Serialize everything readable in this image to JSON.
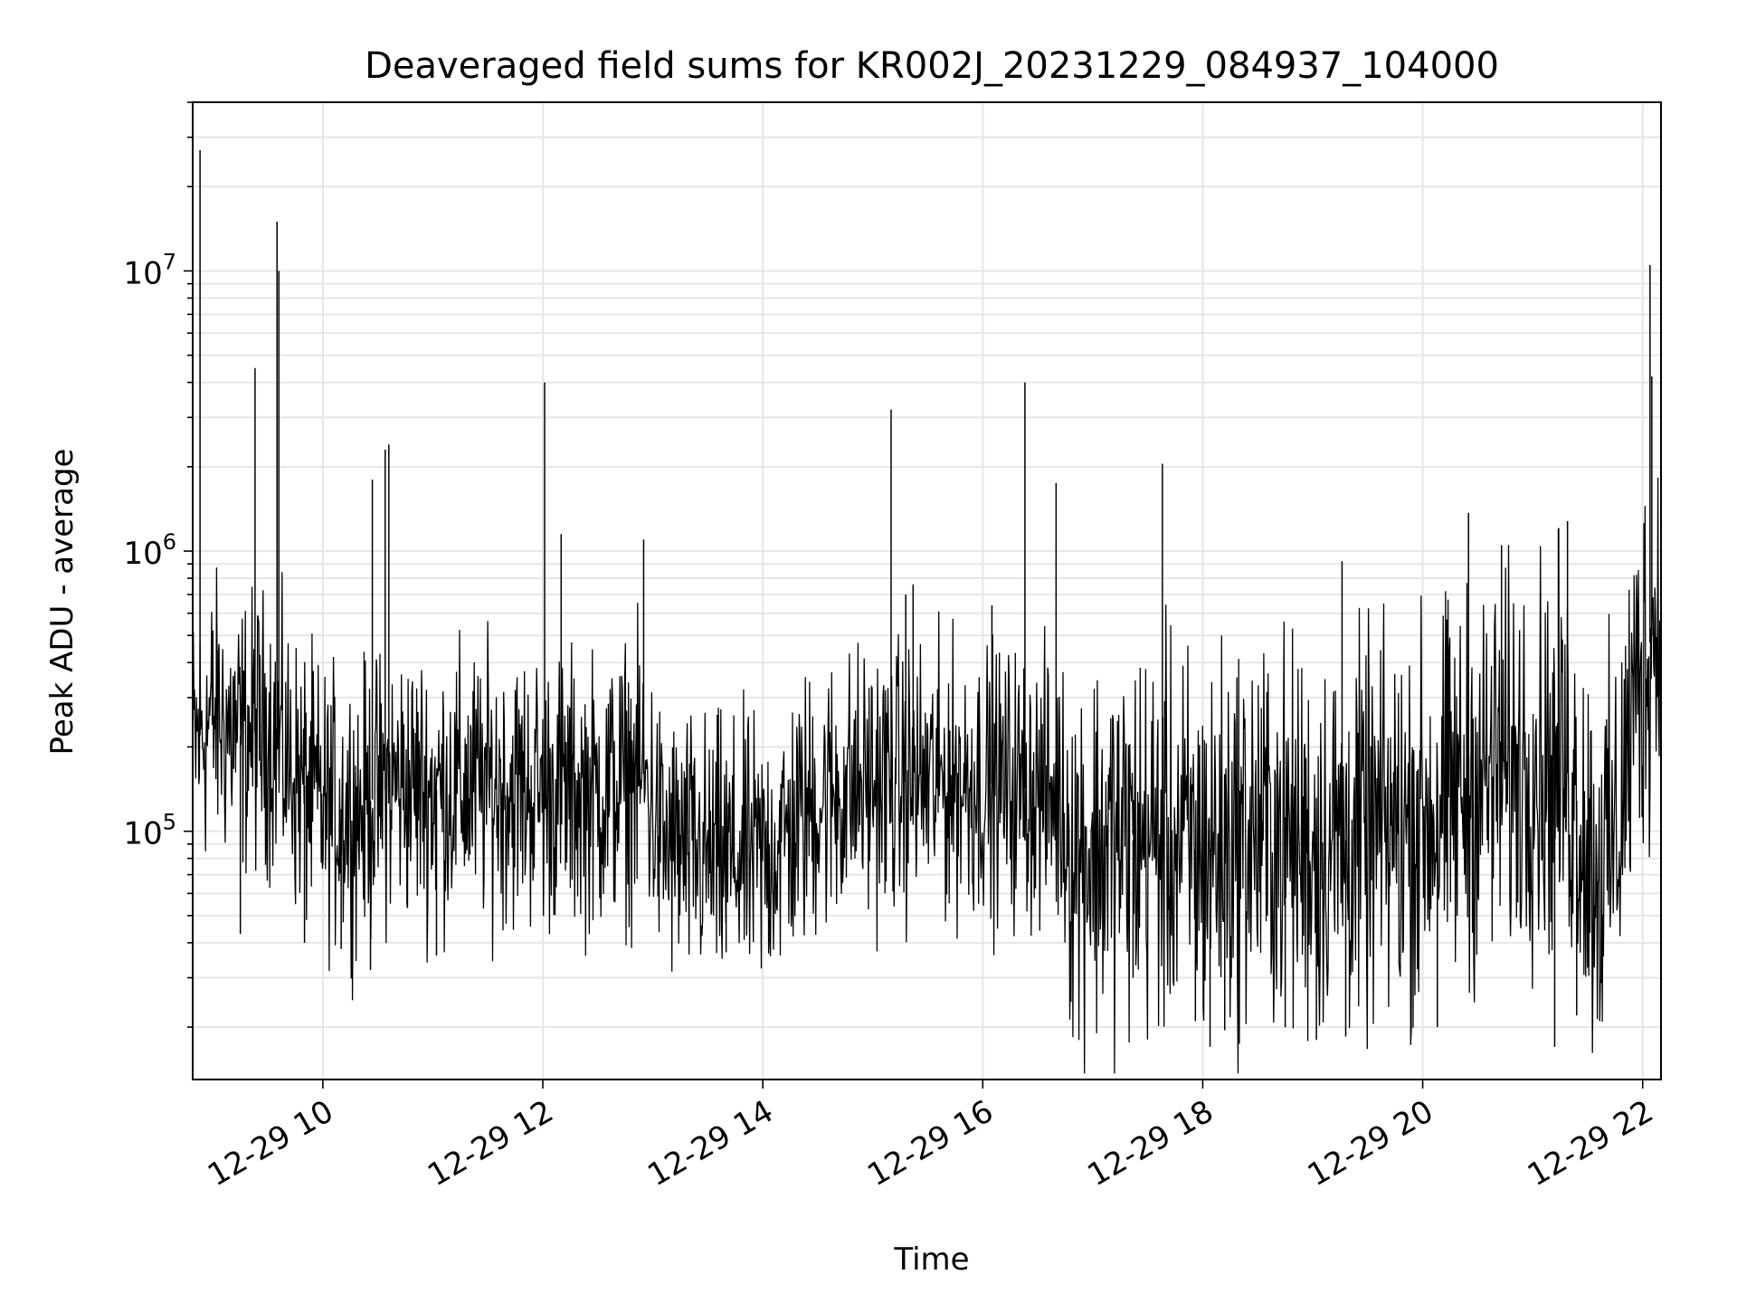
{
  "chart_data": {
    "type": "line",
    "title": "Deaveraged field sums for KR002J_20231229_084937_104000",
    "xlabel": "Time",
    "ylabel": "Peak ADU - average",
    "x_range": [
      "2023-12-29 08:49",
      "2023-12-29 22:10"
    ],
    "yscale": "log",
    "ylim": [
      13000,
      40000000
    ],
    "grid": true,
    "grid_minor": true,
    "line_color": "#000000",
    "x_ticks": [
      {
        "value": "2023-12-29 10:00",
        "label": "12-29 10"
      },
      {
        "value": "2023-12-29 12:00",
        "label": "12-29 12"
      },
      {
        "value": "2023-12-29 14:00",
        "label": "12-29 14"
      },
      {
        "value": "2023-12-29 16:00",
        "label": "12-29 16"
      },
      {
        "value": "2023-12-29 18:00",
        "label": "12-29 18"
      },
      {
        "value": "2023-12-29 20:00",
        "label": "12-29 20"
      },
      {
        "value": "2023-12-29 22:00",
        "label": "12-29 22"
      }
    ],
    "y_ticks": [
      {
        "value": 100000,
        "base": "10",
        "exp": "5"
      },
      {
        "value": 1000000,
        "base": "10",
        "exp": "6"
      },
      {
        "value": 10000000,
        "base": "10",
        "exp": "7"
      }
    ],
    "series": [
      {
        "x": [
          "2023-12-29 08:49",
          "2023-12-29 09:00",
          "2023-12-29 09:15",
          "2023-12-29 09:30",
          "2023-12-29 09:45",
          "2023-12-29 10:00",
          "2023-12-29 10:20",
          "2023-12-29 10:40",
          "2023-12-29 11:00",
          "2023-12-29 11:30",
          "2023-12-29 12:00",
          "2023-12-29 12:30",
          "2023-12-29 12:55",
          "2023-12-29 13:05",
          "2023-12-29 13:30",
          "2023-12-29 14:00",
          "2023-12-29 14:15",
          "2023-12-29 14:30",
          "2023-12-29 15:00",
          "2023-12-29 15:30",
          "2023-12-29 16:00",
          "2023-12-29 16:30",
          "2023-12-29 16:42",
          "2023-12-29 16:50",
          "2023-12-29 17:30",
          "2023-12-29 18:00",
          "2023-12-29 18:30",
          "2023-12-29 19:00",
          "2023-12-29 19:30",
          "2023-12-29 20:00",
          "2023-12-29 20:30",
          "2023-12-29 21:00",
          "2023-12-29 21:20",
          "2023-12-29 21:35",
          "2023-12-29 21:45",
          "2023-12-29 21:55",
          "2023-12-29 22:05",
          "2023-12-29 22:10"
        ],
        "y": [
          200000,
          260000,
          220000,
          230000,
          160000,
          120000,
          120000,
          150000,
          140000,
          145000,
          140000,
          135000,
          160000,
          90000,
          80000,
          80000,
          100000,
          130000,
          150000,
          150000,
          150000,
          140000,
          130000,
          85000,
          95000,
          85000,
          100000,
          90000,
          95000,
          110000,
          150000,
          180000,
          160000,
          70000,
          90000,
          280000,
          500000,
          550000
        ]
      }
    ],
    "spikes": [
      {
        "x": "2023-12-29 08:53",
        "y": 27000000
      },
      {
        "x": "2023-12-29 09:23",
        "y": 4500000
      },
      {
        "x": "2023-12-29 09:35",
        "y": 15000000
      },
      {
        "x": "2023-12-29 09:36",
        "y": 10000000
      },
      {
        "x": "2023-12-29 10:27",
        "y": 1800000
      },
      {
        "x": "2023-12-29 10:34",
        "y": 2300000
      },
      {
        "x": "2023-12-29 10:36",
        "y": 2400000
      },
      {
        "x": "2023-12-29 12:01",
        "y": 4000000
      },
      {
        "x": "2023-12-29 12:10",
        "y": 1150000
      },
      {
        "x": "2023-12-29 12:55",
        "y": 1100000
      },
      {
        "x": "2023-12-29 15:10",
        "y": 3200000
      },
      {
        "x": "2023-12-29 15:18",
        "y": 700000
      },
      {
        "x": "2023-12-29 15:22",
        "y": 760000
      },
      {
        "x": "2023-12-29 16:05",
        "y": 640000
      },
      {
        "x": "2023-12-29 16:23",
        "y": 4000000
      },
      {
        "x": "2023-12-29 16:40",
        "y": 1750000
      },
      {
        "x": "2023-12-29 17:38",
        "y": 2050000
      },
      {
        "x": "2023-12-29 19:16",
        "y": 920000
      },
      {
        "x": "2023-12-29 20:25",
        "y": 1370000
      },
      {
        "x": "2023-12-29 20:43",
        "y": 1050000
      },
      {
        "x": "2023-12-29 21:14",
        "y": 1200000
      },
      {
        "x": "2023-12-29 21:19",
        "y": 1280000
      },
      {
        "x": "2023-12-29 22:04",
        "y": 10500000
      },
      {
        "x": "2023-12-29 22:05",
        "y": 4200000
      }
    ],
    "dips": [
      {
        "x": "2023-12-29 09:15",
        "y": 43000
      },
      {
        "x": "2023-12-29 09:50",
        "y": 40000
      },
      {
        "x": "2023-12-29 10:10",
        "y": 38000
      },
      {
        "x": "2023-12-29 10:26",
        "y": 32000
      },
      {
        "x": "2023-12-29 11:02",
        "y": 36000
      },
      {
        "x": "2023-12-29 13:40",
        "y": 37000
      },
      {
        "x": "2023-12-29 17:22",
        "y": 30000
      },
      {
        "x": "2023-12-29 17:56",
        "y": 21000
      },
      {
        "x": "2023-12-29 18:04",
        "y": 17000
      },
      {
        "x": "2023-12-29 18:12",
        "y": 19500
      },
      {
        "x": "2023-12-29 18:45",
        "y": 20000
      },
      {
        "x": "2023-12-29 19:02",
        "y": 18000
      },
      {
        "x": "2023-12-29 19:18",
        "y": 18500
      },
      {
        "x": "2023-12-29 20:08",
        "y": 20000
      },
      {
        "x": "2023-12-29 21:12",
        "y": 17000
      },
      {
        "x": "2023-12-29 21:24",
        "y": 22000
      }
    ]
  }
}
